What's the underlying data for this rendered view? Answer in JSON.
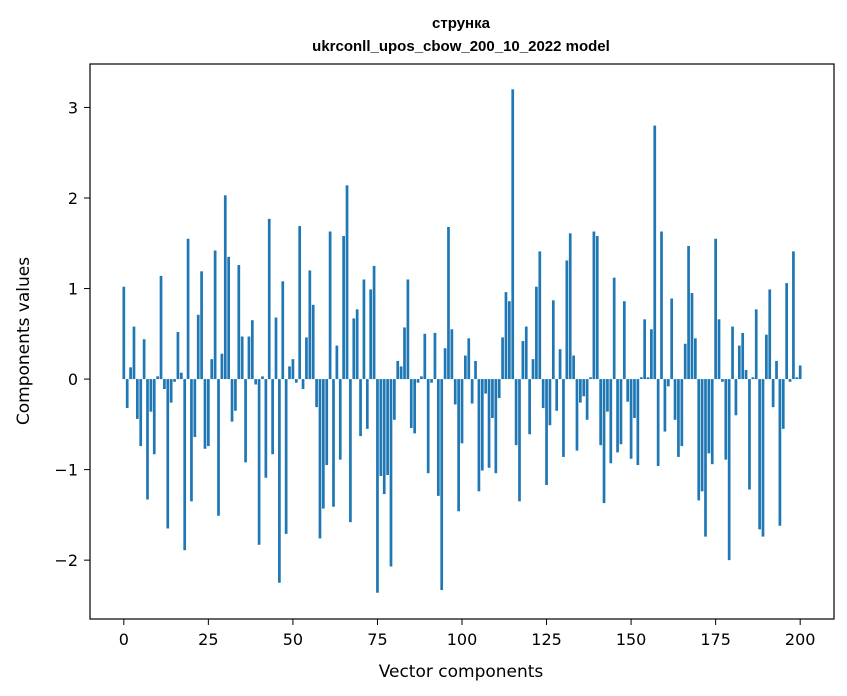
{
  "chart_data": {
    "type": "bar",
    "title_line1": "струнка",
    "title_line2": "ukrconll_upos_cbow_200_10_2022 model",
    "xlabel": "Vector components",
    "ylabel": "Components values",
    "xlim": [
      -10,
      210
    ],
    "ylim": [
      -2.65,
      3.48
    ],
    "x_ticks": [
      0,
      25,
      50,
      75,
      100,
      125,
      150,
      175,
      200
    ],
    "y_ticks": [
      -2,
      -1,
      0,
      1,
      2,
      3
    ],
    "y_tick_labels": [
      "−2",
      "−1",
      "0",
      "1",
      "2",
      "3"
    ],
    "bar_color": "#1f77b4",
    "grid": false,
    "values": [
      1.02,
      -0.32,
      0.13,
      0.58,
      -0.44,
      -0.74,
      0.44,
      -1.33,
      -0.36,
      -0.83,
      0.03,
      1.14,
      -0.11,
      -1.65,
      -0.26,
      -0.03,
      0.52,
      0.07,
      -1.89,
      1.55,
      -1.35,
      -0.64,
      0.71,
      1.19,
      -0.77,
      -0.74,
      0.22,
      1.42,
      -1.51,
      0.28,
      2.03,
      1.35,
      -0.47,
      -0.35,
      1.26,
      0.47,
      -0.92,
      0.47,
      0.65,
      -0.06,
      -1.83,
      0.03,
      -1.09,
      1.77,
      -0.83,
      0.68,
      -2.25,
      1.08,
      -1.71,
      0.14,
      0.22,
      -0.04,
      1.69,
      -0.11,
      0.46,
      1.2,
      0.82,
      -0.31,
      -1.76,
      -1.43,
      -0.95,
      1.63,
      -1.41,
      0.37,
      -0.89,
      1.58,
      2.14,
      -1.58,
      0.67,
      0.77,
      -0.63,
      1.1,
      -0.55,
      0.99,
      1.25,
      -2.36,
      -1.07,
      -1.27,
      -1.06,
      -2.07,
      -0.45,
      0.2,
      0.14,
      0.57,
      1.1,
      -0.54,
      -0.6,
      -0.04,
      0.03,
      0.5,
      -1.04,
      -0.04,
      0.51,
      -1.29,
      -2.33,
      0.34,
      1.68,
      0.55,
      -0.28,
      -1.46,
      -0.71,
      0.26,
      0.45,
      -0.27,
      0.2,
      -1.24,
      -1.01,
      -0.16,
      -0.98,
      -0.43,
      -1.04,
      -0.21,
      0.46,
      0.96,
      0.86,
      3.2,
      -0.73,
      -1.35,
      0.42,
      0.58,
      -0.61,
      0.22,
      1.02,
      1.41,
      -0.32,
      -1.17,
      -0.51,
      0.87,
      -0.35,
      0.33,
      -0.86,
      1.31,
      1.61,
      0.26,
      -0.79,
      -0.26,
      -0.19,
      -0.45,
      0.02,
      1.63,
      1.58,
      -0.73,
      -1.37,
      -0.36,
      -0.93,
      1.12,
      -0.81,
      -0.72,
      0.86,
      -0.25,
      -0.88,
      -0.43,
      -0.95,
      0.02,
      0.66,
      0.02,
      0.55,
      2.8,
      -0.96,
      1.63,
      -0.58,
      -0.08,
      0.89,
      -0.45,
      -0.86,
      -0.74,
      0.39,
      1.47,
      0.95,
      0.45,
      -1.34,
      -1.24,
      -1.74,
      -0.82,
      -0.94,
      1.55,
      0.66,
      -0.03,
      -0.89,
      -2.0,
      0.58,
      -0.4,
      0.37,
      0.51,
      0.1,
      -1.22,
      0.02,
      0.77,
      -1.66,
      -1.74,
      0.49,
      0.99,
      -0.31,
      0.2,
      -1.62,
      -0.55,
      1.06,
      -0.03,
      1.41,
      0.02,
      0.15
    ]
  }
}
